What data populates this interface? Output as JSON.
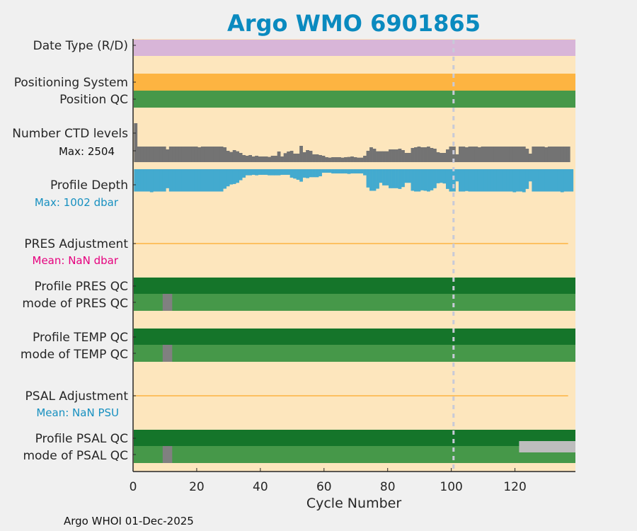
{
  "chart_data": {
    "type": "bar",
    "title": "Argo WMO 6901865",
    "xlabel": "Cycle Number",
    "xlim": [
      0,
      139
    ],
    "xticks": [
      "0",
      "20",
      "40",
      "60",
      "80",
      "100",
      "120"
    ],
    "xtick_values": [
      0,
      20,
      40,
      60,
      80,
      100,
      120
    ],
    "marker_cycle": 100.7,
    "rows": {
      "date_type": {
        "label": "Date Type (R/D)",
        "value": "D",
        "color": "#d8b5d8"
      },
      "positioning_system": {
        "label": "Positioning System",
        "color": "#fdb441"
      },
      "position_qc": {
        "label": "Position QC",
        "color": "#469849"
      },
      "ctd_levels": {
        "label": "Number CTD levels",
        "max_label": "Max: 2504",
        "max": 2504,
        "color": "#737373"
      },
      "profile_depth": {
        "label": "Profile Depth",
        "max_label": "Max: 1002 dbar",
        "max": 1002,
        "color": "#43aacf",
        "max_label_color": "#1790c0"
      },
      "pres_adjustment": {
        "label": "PRES Adjustment",
        "mean_label": "Mean:  NaN dbar",
        "mean_color": "#e6007e",
        "line_color": "#fdb441"
      },
      "profile_pres_qc": {
        "label": "Profile PRES QC",
        "color": "#15752a"
      },
      "mode_pres_qc": {
        "label": "mode of PRES QC",
        "color": "#469849",
        "gray_cycles": [
          10,
          11,
          12
        ]
      },
      "profile_temp_qc": {
        "label": "Profile TEMP QC",
        "color": "#15752a"
      },
      "mode_temp_qc": {
        "label": "mode of TEMP QC",
        "color": "#469849",
        "gray_cycles": [
          10,
          11,
          12
        ]
      },
      "psal_adjustment": {
        "label": "PSAL Adjustment",
        "mean_label": "Mean:  NaN PSU",
        "mean_color": "#1790c0",
        "line_color": "#fdb441"
      },
      "profile_psal_qc": {
        "label": "Profile PSAL QC",
        "color": "#15752a",
        "light_gray_from_cycle": 122
      },
      "mode_psal_qc": {
        "label": "mode of PSAL QC",
        "color": "#469849",
        "gray_cycles": [
          10,
          11,
          12
        ]
      }
    },
    "ctd_levels": [
      2504,
      1002,
      1002,
      1002,
      1002,
      1002,
      1002,
      1002,
      1002,
      1002,
      819,
      1002,
      1002,
      1002,
      1002,
      1002,
      1002,
      1002,
      1002,
      1002,
      956,
      1002,
      1002,
      1002,
      1002,
      1002,
      1002,
      1002,
      956,
      728,
      653,
      774,
      698,
      592,
      455,
      410,
      455,
      364,
      410,
      364,
      364,
      364,
      334,
      410,
      410,
      683,
      364,
      577,
      683,
      728,
      546,
      546,
      1047,
      637,
      774,
      728,
      501,
      501,
      455,
      410,
      319,
      288,
      319,
      319,
      319,
      288,
      319,
      334,
      364,
      319,
      288,
      288,
      410,
      728,
      956,
      865,
      698,
      698,
      698,
      698,
      819,
      819,
      819,
      865,
      774,
      592,
      592,
      911,
      956,
      1002,
      956,
      956,
      1002,
      911,
      865,
      637,
      592,
      592,
      819,
      1002,
      1002,
      501,
      1002,
      1002,
      956,
      1002,
      1002,
      1002,
      956,
      1002,
      1002,
      1002,
      1002,
      1002,
      1002,
      1002,
      1002,
      1002,
      1002,
      1002,
      1002,
      1002,
      1002,
      865,
      546,
      1002,
      1002,
      1002,
      1002,
      956,
      1002,
      1002,
      1002,
      1002,
      1002,
      1002,
      1002
    ],
    "profile_depth": [
      971,
      971,
      971,
      971,
      971,
      1002,
      971,
      971,
      971,
      971,
      828,
      971,
      971,
      971,
      971,
      971,
      971,
      971,
      971,
      971,
      971,
      971,
      971,
      971,
      971,
      971,
      971,
      971,
      849,
      746,
      665,
      644,
      593,
      480,
      368,
      266,
      266,
      245,
      266,
      245,
      245,
      245,
      266,
      266,
      266,
      266,
      245,
      245,
      245,
      368,
      409,
      460,
      542,
      368,
      388,
      348,
      348,
      348,
      307,
      153,
      153,
      153,
      184,
      184,
      184,
      184,
      184,
      204,
      184,
      184,
      184,
      184,
      266,
      797,
      940,
      940,
      849,
      593,
      705,
      705,
      828,
      828,
      828,
      859,
      777,
      593,
      593,
      940,
      971,
      971,
      920,
      940,
      971,
      920,
      828,
      613,
      593,
      623,
      859,
      971,
      971,
      531,
      971,
      971,
      950,
      971,
      971,
      971,
      971,
      971,
      971,
      971,
      971,
      971,
      971,
      971,
      971,
      971,
      971,
      1002,
      971,
      971,
      1002,
      859,
      531,
      971,
      971,
      971,
      971,
      971,
      971,
      971,
      971,
      971,
      1002,
      971,
      971,
      971
    ]
  },
  "footer": "Argo WHOI 01-Dec-2025"
}
